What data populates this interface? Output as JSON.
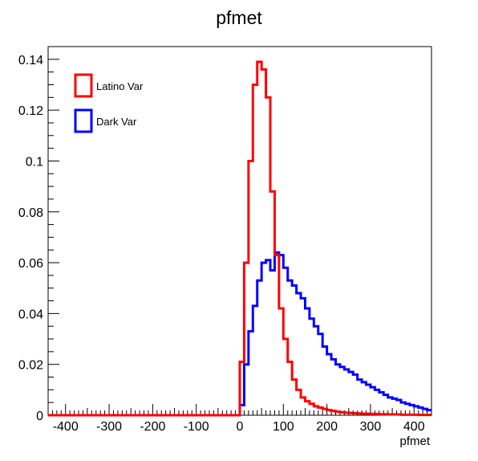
{
  "chart_data": {
    "type": "line",
    "title": "pfmet",
    "xlabel": "pfmet",
    "ylabel": "",
    "xlim": [
      -440,
      440
    ],
    "ylim": [
      0,
      0.145
    ],
    "x_ticks": [
      -400,
      -300,
      -200,
      -100,
      0,
      100,
      200,
      300,
      400
    ],
    "y_ticks": [
      0,
      0.02,
      0.04,
      0.06,
      0.08,
      0.1,
      0.12,
      0.14
    ],
    "y_tick_labels": [
      "0",
      "0.02",
      "0.04",
      "0.06",
      "0.08",
      "0.1",
      "0.12",
      "0.14"
    ],
    "bin_width": 10,
    "bin_edges_start": 0,
    "legend_position": "top-left",
    "grid": false,
    "series": [
      {
        "name": "Latino Var",
        "color": "#ff0000",
        "values": [
          0.021,
          0.06,
          0.1,
          0.13,
          0.139,
          0.136,
          0.125,
          0.088,
          0.063,
          0.042,
          0.03,
          0.021,
          0.014,
          0.01,
          0.007,
          0.0055,
          0.0045,
          0.0035,
          0.003,
          0.0025,
          0.002,
          0.0017,
          0.0014,
          0.0012,
          0.001,
          0.0009,
          0.0008,
          0.0007,
          0.0006,
          0.0006,
          0.0005,
          0.0005,
          0.0004,
          0.0004,
          0.0003,
          0.0003,
          0.0003,
          0.0002,
          0.0002,
          0.0002,
          0.0002,
          0.0001,
          0.0001,
          0.0001
        ]
      },
      {
        "name": "Dark Var",
        "color": "#0000ff",
        "values": [
          0.004,
          0.02,
          0.033,
          0.043,
          0.053,
          0.06,
          0.061,
          0.057,
          0.064,
          0.063,
          0.058,
          0.053,
          0.051,
          0.048,
          0.046,
          0.042,
          0.038,
          0.035,
          0.032,
          0.027,
          0.024,
          0.022,
          0.02,
          0.019,
          0.018,
          0.017,
          0.016,
          0.014,
          0.013,
          0.012,
          0.011,
          0.01,
          0.009,
          0.008,
          0.007,
          0.0065,
          0.006,
          0.005,
          0.0045,
          0.004,
          0.0035,
          0.003,
          0.0025,
          0.002
        ]
      }
    ]
  }
}
